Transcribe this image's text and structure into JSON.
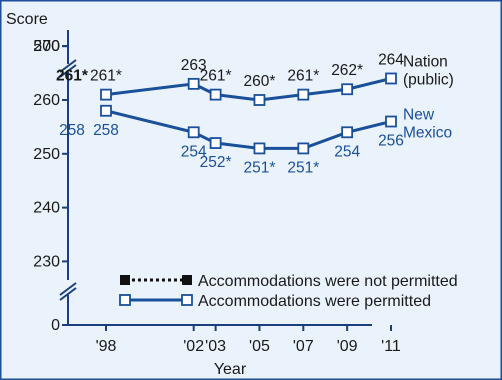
{
  "colors": {
    "background": "#eaf3fb",
    "frame": "#1f4e9a",
    "axis": "#1a3f7a",
    "nation": "#1a1a1a",
    "new_mexico": "#1a4f9a",
    "marker_fill": "#ffffff",
    "series_line": "#1a4f9a"
  },
  "chart_data": {
    "type": "line",
    "ylabel": "Score",
    "xlabel": "Year",
    "y_break": true,
    "y_ticks": [
      "500",
      "280",
      "270",
      "260",
      "250",
      "240",
      "230",
      "0"
    ],
    "ylim": [
      225,
      285
    ],
    "categories": [
      "'98",
      "'02",
      "'03",
      "'05",
      "'07",
      "'09",
      "'11"
    ],
    "x_years": [
      1998,
      2002,
      2003,
      2005,
      2007,
      2009,
      2011
    ],
    "series": [
      {
        "name": "Nation (public)",
        "name_lines": [
          "Nation",
          "(public)"
        ],
        "values": [
          261,
          263,
          261,
          260,
          261,
          262,
          264
        ],
        "labels": [
          "261*",
          "263",
          "261*",
          "260*",
          "261*",
          "262*",
          "264"
        ],
        "left_extra_label": "261*"
      },
      {
        "name": "New Mexico",
        "name_lines": [
          "New",
          "Mexico"
        ],
        "values": [
          258,
          254,
          252,
          251,
          251,
          254,
          256
        ],
        "labels": [
          "258",
          "254",
          "252*",
          "251*",
          "251*",
          "254",
          "256"
        ],
        "left_extra_label": "258"
      }
    ],
    "legend": {
      "placement": "bottom-right",
      "items": [
        {
          "label": "Accommodations were not permitted",
          "style": "dotted"
        },
        {
          "label": "Accommodations were permitted",
          "style": "solid"
        }
      ]
    }
  }
}
